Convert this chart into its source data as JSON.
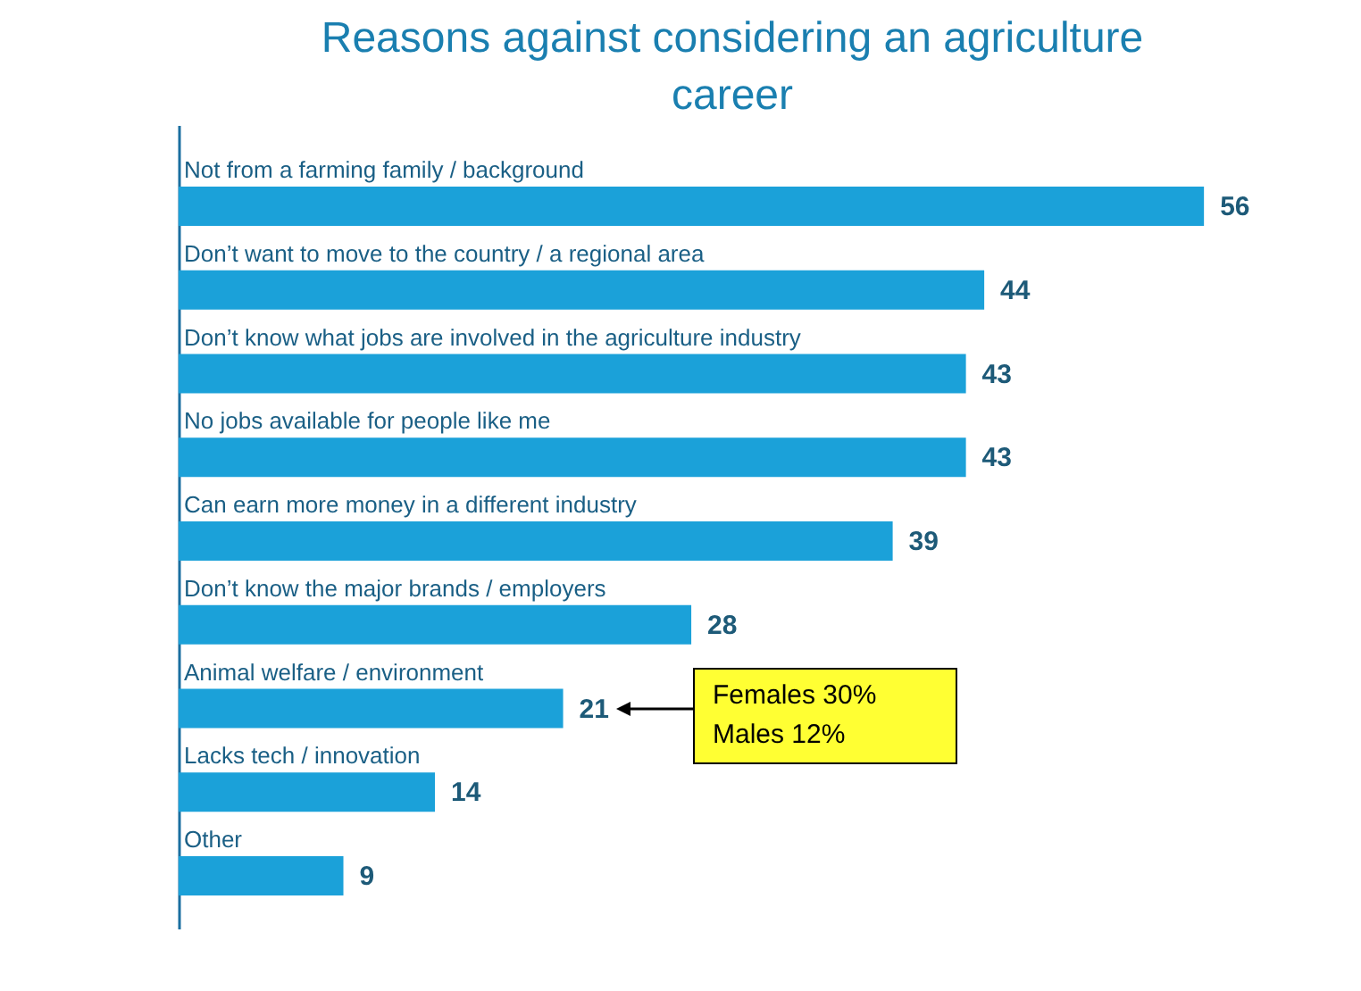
{
  "chart_data": {
    "type": "bar",
    "orientation": "horizontal",
    "title": "Reasons against considering an agriculture career",
    "categories": [
      "Not from a farming family / background",
      "Don’t want to move to the country / a regional area",
      "Don’t know what jobs are involved in the agriculture industry",
      "No jobs available for people like me",
      "Can earn more money in a different industry",
      "Don’t know the major brands / employers",
      "Animal welfare / environment",
      "Lacks tech / innovation",
      "Other"
    ],
    "values": [
      56,
      44,
      43,
      43,
      39,
      28,
      21,
      14,
      9
    ],
    "color": "#1ba1d9",
    "data_labels": true,
    "annotations": [
      "Females 30%",
      "Males 12%"
    ]
  }
}
